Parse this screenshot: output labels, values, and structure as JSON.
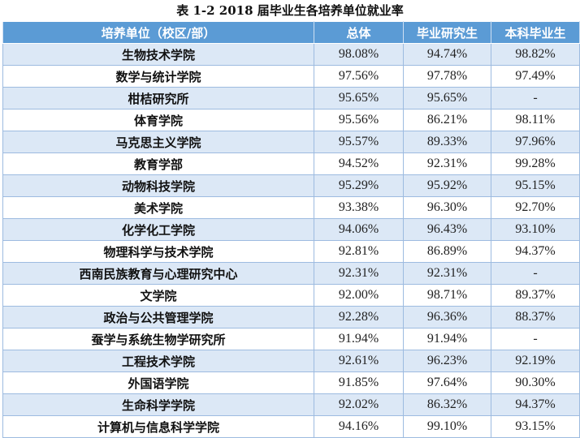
{
  "caption": "表 1-2   2018 届毕业生各培养单位就业率",
  "headers": [
    "培养单位（校区/部）",
    "总体",
    "毕业研究生",
    "本科毕业生"
  ],
  "rows": [
    {
      "unit": "生物技术学院",
      "total": "98.08%",
      "grad": "94.74%",
      "undergrad": "98.82%"
    },
    {
      "unit": "数学与统计学院",
      "total": "97.56%",
      "grad": "97.78%",
      "undergrad": "97.49%"
    },
    {
      "unit": "柑桔研究所",
      "total": "95.65%",
      "grad": "95.65%",
      "undergrad": "-"
    },
    {
      "unit": "体育学院",
      "total": "95.56%",
      "grad": "86.21%",
      "undergrad": "98.11%"
    },
    {
      "unit": "马克思主义学院",
      "total": "95.57%",
      "grad": "89.33%",
      "undergrad": "97.96%"
    },
    {
      "unit": "教育学部",
      "total": "94.52%",
      "grad": "92.31%",
      "undergrad": "99.28%"
    },
    {
      "unit": "动物科技学院",
      "total": "95.29%",
      "grad": "95.92%",
      "undergrad": "95.15%"
    },
    {
      "unit": "美术学院",
      "total": "93.38%",
      "grad": "96.30%",
      "undergrad": "92.70%"
    },
    {
      "unit": "化学化工学院",
      "total": "94.06%",
      "grad": "96.43%",
      "undergrad": "93.10%"
    },
    {
      "unit": "物理科学与技术学院",
      "total": "92.81%",
      "grad": "86.89%",
      "undergrad": "94.37%"
    },
    {
      "unit": "西南民族教育与心理研究中心",
      "total": "92.31%",
      "grad": "92.31%",
      "undergrad": "-"
    },
    {
      "unit": "文学院",
      "total": "92.00%",
      "grad": "98.71%",
      "undergrad": "89.37%"
    },
    {
      "unit": "政治与公共管理学院",
      "total": "92.28%",
      "grad": "96.36%",
      "undergrad": "88.37%"
    },
    {
      "unit": "蚕学与系统生物学研究所",
      "total": "91.94%",
      "grad": "91.94%",
      "undergrad": "-"
    },
    {
      "unit": "工程技术学院",
      "total": "92.61%",
      "grad": "96.23%",
      "undergrad": "92.19%"
    },
    {
      "unit": "外国语学院",
      "total": "91.85%",
      "grad": "97.64%",
      "undergrad": "90.30%"
    },
    {
      "unit": "生命科学学院",
      "total": "92.02%",
      "grad": "86.32%",
      "undergrad": "94.37%"
    },
    {
      "unit": "计算机与信息科学学院",
      "total": "94.16%",
      "grad": "99.10%",
      "undergrad": "93.15%"
    }
  ],
  "colors": {
    "header_bg": "#5b9bd5",
    "header_text": "#ffffff",
    "row_alt_bg": "#dce8f6",
    "border": "#9dbbe0"
  }
}
